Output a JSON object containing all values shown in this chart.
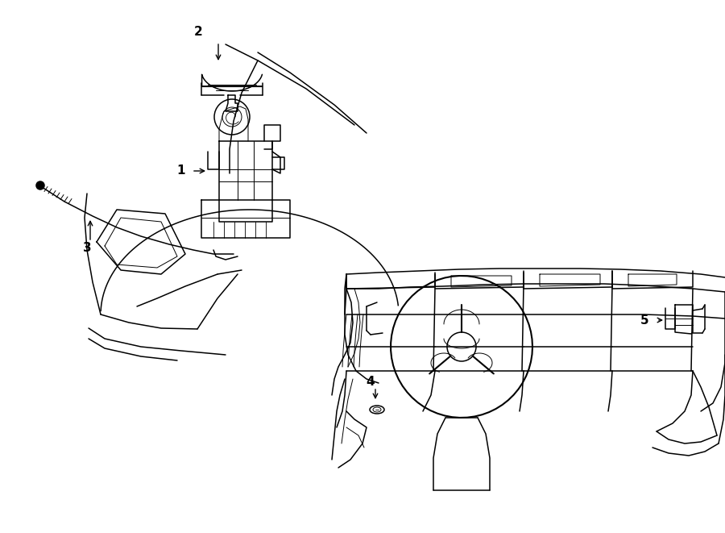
{
  "bg_color": "#ffffff",
  "line_color": "#000000",
  "fig_width": 9.0,
  "fig_height": 6.61,
  "dpi": 100,
  "lw_main": 1.1,
  "lw_thin": 0.7,
  "label_fontsize": 11,
  "label_fontweight": "bold"
}
